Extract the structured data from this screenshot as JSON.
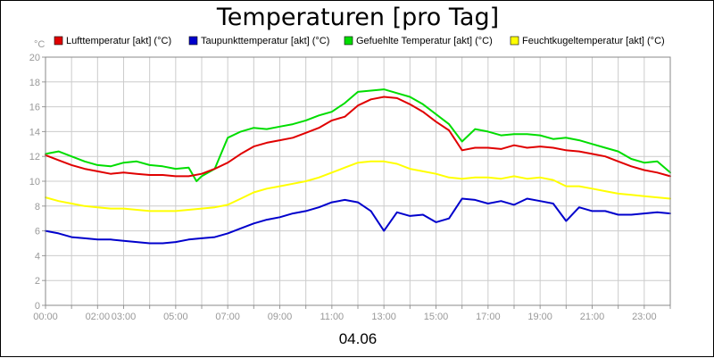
{
  "chart_data": {
    "type": "line",
    "title": "Temperaturen [pro Tag]",
    "ylabel": "°C",
    "xlabel": "04.06",
    "ylim": [
      0,
      20
    ],
    "xlim": [
      0,
      24
    ],
    "yticks": [
      "0",
      "2",
      "4",
      "6",
      "8",
      "10",
      "12",
      "14",
      "16",
      "18",
      "20"
    ],
    "yticks_values": [
      0,
      2,
      4,
      6,
      8,
      10,
      12,
      14,
      16,
      18,
      20
    ],
    "xticks": [
      {
        "t": 0,
        "label": "00:00"
      },
      {
        "t": 2,
        "label": "02:00"
      },
      {
        "t": 3,
        "label": "03:00"
      },
      {
        "t": 5,
        "label": "05:00"
      },
      {
        "t": 7,
        "label": "07:00"
      },
      {
        "t": 9,
        "label": "09:00"
      },
      {
        "t": 11,
        "label": "11:00"
      },
      {
        "t": 13,
        "label": "13:00"
      },
      {
        "t": 15,
        "label": "15:00"
      },
      {
        "t": 17,
        "label": "17:00"
      },
      {
        "t": 19,
        "label": "19:00"
      },
      {
        "t": 21,
        "label": "21:00"
      },
      {
        "t": 23,
        "label": "23:00"
      }
    ],
    "grid": true,
    "legend_position": "top",
    "series": [
      {
        "name": "Lufttemperatur [akt] (°C)",
        "color": "#e00000",
        "x": [
          0,
          0.5,
          1,
          1.5,
          2,
          2.5,
          3,
          3.5,
          4,
          4.5,
          5,
          5.5,
          6,
          6.5,
          7,
          7.5,
          8,
          8.5,
          9,
          9.5,
          10,
          10.5,
          11,
          11.5,
          12,
          12.5,
          13,
          13.5,
          14,
          14.5,
          15,
          15.5,
          16,
          16.5,
          17,
          17.5,
          18,
          18.5,
          19,
          19.5,
          20,
          20.5,
          21,
          21.5,
          22,
          22.5,
          23,
          23.5,
          24
        ],
        "values": [
          12.1,
          11.7,
          11.3,
          11.0,
          10.8,
          10.6,
          10.7,
          10.6,
          10.5,
          10.5,
          10.4,
          10.4,
          10.6,
          11.0,
          11.5,
          12.2,
          12.8,
          13.1,
          13.3,
          13.5,
          13.9,
          14.3,
          14.9,
          15.2,
          16.1,
          16.6,
          16.8,
          16.7,
          16.2,
          15.6,
          14.8,
          14.1,
          12.5,
          12.7,
          12.7,
          12.6,
          12.9,
          12.7,
          12.8,
          12.7,
          12.5,
          12.4,
          12.2,
          12.0,
          11.6,
          11.2,
          10.9,
          10.7,
          10.4
        ]
      },
      {
        "name": "Taupunkttemperatur [akt] (°C)",
        "color": "#0000cc",
        "x": [
          0,
          0.5,
          1,
          1.5,
          2,
          2.5,
          3,
          3.5,
          4,
          4.5,
          5,
          5.5,
          6,
          6.5,
          7,
          7.5,
          8,
          8.5,
          9,
          9.5,
          10,
          10.5,
          11,
          11.5,
          12,
          12.5,
          13,
          13.5,
          14,
          14.5,
          15,
          15.5,
          16,
          16.5,
          17,
          17.5,
          18,
          18.5,
          19,
          19.5,
          20,
          20.5,
          21,
          21.5,
          22,
          22.5,
          23,
          23.5,
          24
        ],
        "values": [
          6.0,
          5.8,
          5.5,
          5.4,
          5.3,
          5.3,
          5.2,
          5.1,
          5.0,
          5.0,
          5.1,
          5.3,
          5.4,
          5.5,
          5.8,
          6.2,
          6.6,
          6.9,
          7.1,
          7.4,
          7.6,
          7.9,
          8.3,
          8.5,
          8.3,
          7.6,
          6.0,
          7.5,
          7.2,
          7.3,
          6.7,
          7.0,
          8.6,
          8.5,
          8.2,
          8.4,
          8.1,
          8.6,
          8.4,
          8.2,
          6.8,
          7.9,
          7.6,
          7.6,
          7.3,
          7.3,
          7.4,
          7.5,
          7.4
        ]
      },
      {
        "name": "Gefuehlte Temperatur [akt] (°C)",
        "color": "#00dd00",
        "x": [
          0,
          0.5,
          1,
          1.5,
          2,
          2.5,
          3,
          3.5,
          4,
          4.5,
          5,
          5.5,
          5.8,
          6,
          6.5,
          7,
          7.5,
          8,
          8.5,
          9,
          9.5,
          10,
          10.5,
          11,
          11.5,
          12,
          12.5,
          13,
          13.5,
          14,
          14.5,
          15,
          15.5,
          16,
          16.5,
          17,
          17.5,
          18,
          18.5,
          19,
          19.5,
          20,
          20.5,
          21,
          21.5,
          22,
          22.5,
          23,
          23.5,
          24
        ],
        "values": [
          12.2,
          12.4,
          12.0,
          11.6,
          11.3,
          11.2,
          11.5,
          11.6,
          11.3,
          11.2,
          11.0,
          11.1,
          10.0,
          10.4,
          11.0,
          13.5,
          14.0,
          14.3,
          14.2,
          14.4,
          14.6,
          14.9,
          15.3,
          15.6,
          16.3,
          17.2,
          17.3,
          17.4,
          17.1,
          16.8,
          16.2,
          15.4,
          14.6,
          13.2,
          14.2,
          14.0,
          13.7,
          13.8,
          13.8,
          13.7,
          13.4,
          13.5,
          13.3,
          13.0,
          12.7,
          12.4,
          11.8,
          11.5,
          11.6,
          10.7
        ]
      },
      {
        "name": "Feuchtkugeltemperatur [akt] (°C)",
        "color": "#ffff00",
        "x": [
          0,
          0.5,
          1,
          1.5,
          2,
          2.5,
          3,
          3.5,
          4,
          4.5,
          5,
          5.5,
          6,
          6.5,
          7,
          7.5,
          8,
          8.5,
          9,
          9.5,
          10,
          10.5,
          11,
          11.5,
          12,
          12.5,
          13,
          13.5,
          14,
          14.5,
          15,
          15.5,
          16,
          16.5,
          17,
          17.5,
          18,
          18.5,
          19,
          19.5,
          20,
          20.5,
          21,
          21.5,
          22,
          22.5,
          23,
          23.5,
          24
        ],
        "values": [
          8.7,
          8.4,
          8.2,
          8.0,
          7.9,
          7.8,
          7.8,
          7.7,
          7.6,
          7.6,
          7.6,
          7.7,
          7.8,
          7.9,
          8.1,
          8.6,
          9.1,
          9.4,
          9.6,
          9.8,
          10.0,
          10.3,
          10.7,
          11.1,
          11.5,
          11.6,
          11.6,
          11.4,
          11.0,
          10.8,
          10.6,
          10.3,
          10.2,
          10.3,
          10.3,
          10.2,
          10.4,
          10.2,
          10.3,
          10.1,
          9.6,
          9.6,
          9.4,
          9.2,
          9.0,
          8.9,
          8.8,
          8.7,
          8.6
        ]
      }
    ]
  }
}
